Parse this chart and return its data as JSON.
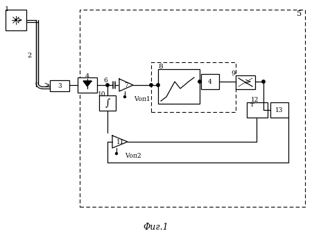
{
  "bg": "#ffffff",
  "caption": "Φиг.1",
  "Vop1": "Vоп1",
  "Vop2": "Vоп2",
  "lw": 0.9
}
